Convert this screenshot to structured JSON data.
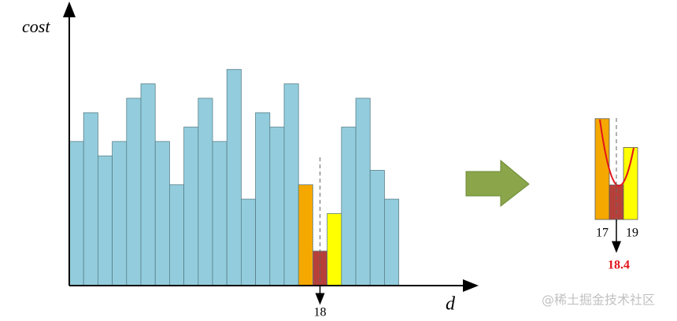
{
  "chart_data": {
    "type": "bar",
    "y_label": "cost",
    "x_label": "d",
    "categories": [
      null,
      null,
      null,
      null,
      null,
      null,
      null,
      null,
      null,
      null,
      null,
      null,
      null,
      null,
      null,
      null,
      null,
      "18",
      null,
      null,
      null,
      null,
      null
    ],
    "values": [
      10,
      12,
      9,
      10,
      13,
      14,
      10,
      7,
      11,
      13,
      10,
      15,
      6,
      12,
      11,
      14,
      7,
      2.4,
      5,
      11,
      13,
      8,
      6
    ],
    "colors": [
      "#93cddd",
      "#93cddd",
      "#93cddd",
      "#93cddd",
      "#93cddd",
      "#93cddd",
      "#93cddd",
      "#93cddd",
      "#93cddd",
      "#93cddd",
      "#93cddd",
      "#93cddd",
      "#93cddd",
      "#93cddd",
      "#93cddd",
      "#93cddd",
      "#f5a800",
      "#b5403a",
      "#ffff00",
      "#93cddd",
      "#93cddd",
      "#93cddd",
      "#93cddd"
    ],
    "ylim": [
      0,
      19
    ],
    "inset": {
      "left_label": "17",
      "right_label": "19",
      "result": "18.4"
    },
    "watermark": "@稀土掘金技术社区"
  }
}
